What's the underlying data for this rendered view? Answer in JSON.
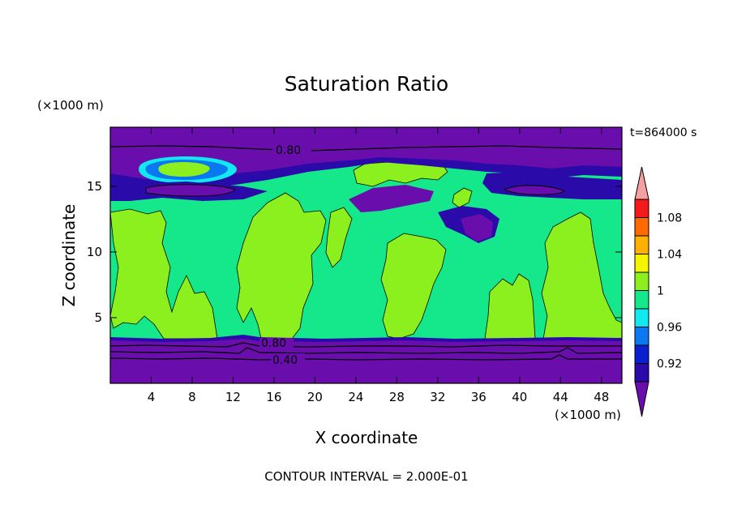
{
  "chart_data": {
    "type": "heatmap",
    "title": "Saturation Ratio",
    "xlabel": "X coordinate",
    "ylabel": "Z coordinate",
    "x_unit": "(×1000 m)",
    "y_unit": "(×1000 m)",
    "time_label": "t=864000 s",
    "footer": "CONTOUR INTERVAL = 2.000E-01",
    "xlim": [
      0,
      50
    ],
    "ylim": [
      0,
      19.5
    ],
    "x_ticks": [
      "4",
      "8",
      "12",
      "16",
      "20",
      "24",
      "28",
      "32",
      "36",
      "40",
      "44",
      "48"
    ],
    "y_ticks": [
      "5",
      "10",
      "15"
    ],
    "contour_labels": [
      "0.80",
      "0.80",
      "0.40"
    ],
    "colorbar": {
      "levels": [
        0.9,
        0.92,
        0.94,
        0.96,
        0.98,
        1.0,
        1.02,
        1.04,
        1.06,
        1.08,
        1.1
      ],
      "tick_labels": [
        "0.92",
        "0.96",
        "1",
        "1.04",
        "1.08"
      ],
      "colors": [
        "#6a0dad",
        "#2a0aa8",
        "#0a1fcd",
        "#0a78f0",
        "#12e8f0",
        "#14e88a",
        "#8cf01e",
        "#f5f500",
        "#ffb000",
        "#ff6a00",
        "#f51a1a",
        "#f5a0a0"
      ]
    }
  }
}
